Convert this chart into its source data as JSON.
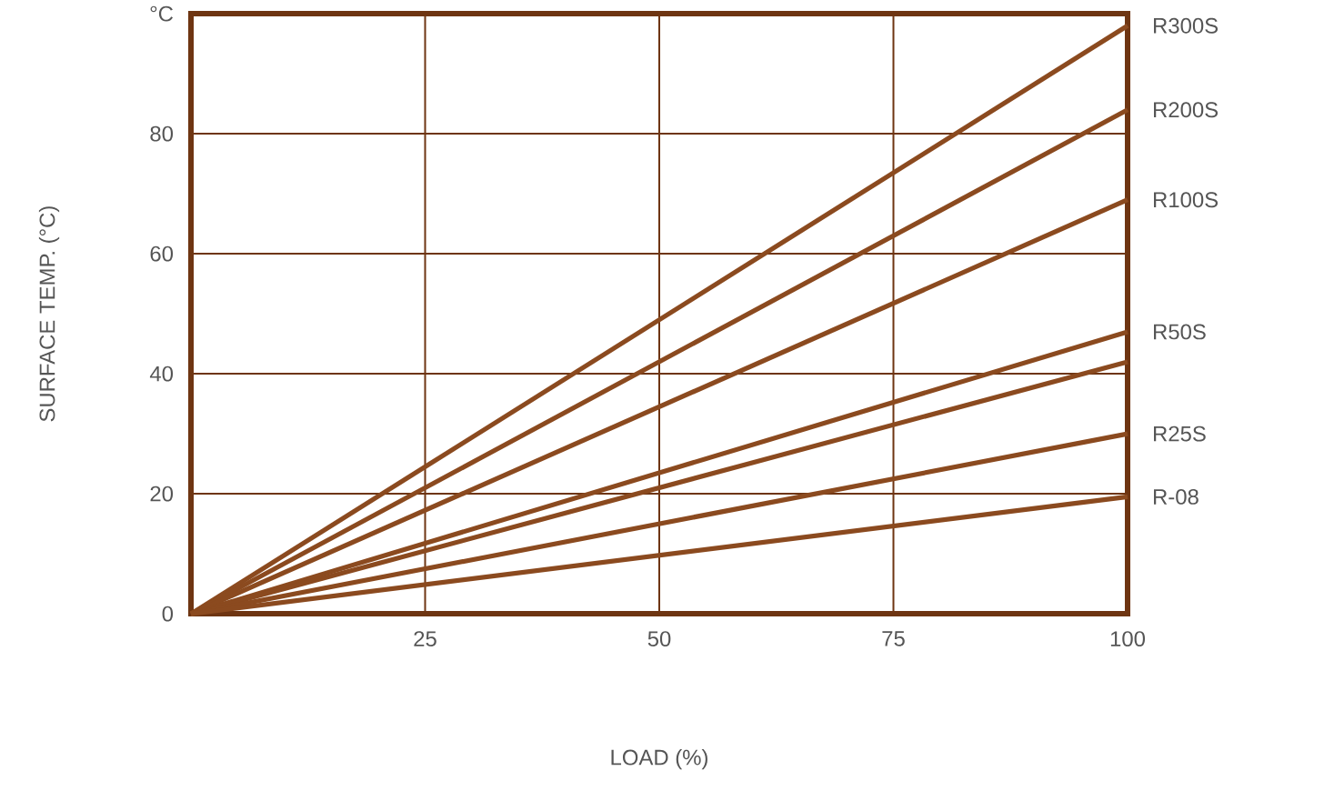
{
  "chart_data": {
    "type": "line",
    "xlabel": "LOAD (%)",
    "ylabel": "SURFACE TEMP. (°C)",
    "x": [
      0,
      100
    ],
    "series": [
      {
        "name": "R300S",
        "color": "#8b4a1f",
        "values": [
          0,
          98
        ]
      },
      {
        "name": "R200S",
        "color": "#8b4a1f",
        "values": [
          0,
          84
        ]
      },
      {
        "name": "R100S",
        "color": "#8b4a1f",
        "values": [
          0,
          69
        ]
      },
      {
        "name": "R50S",
        "color": "#8b4a1f",
        "values": [
          0,
          47
        ]
      },
      {
        "color": "#8b4a1f",
        "values": [
          0,
          42
        ]
      },
      {
        "name": "R25S",
        "color": "#8b4a1f",
        "values": [
          0,
          30
        ]
      },
      {
        "name": "R-08",
        "color": "#8b4a1f",
        "values": [
          0,
          19.5
        ]
      }
    ],
    "xlim": [
      0,
      100
    ],
    "ylim": [
      0,
      100
    ],
    "xticks": [
      25,
      50,
      75,
      100
    ],
    "yticks": [
      0,
      20,
      40,
      60,
      80,
      {
        "value": 100,
        "label": "°C"
      }
    ],
    "grid": true,
    "legend": false,
    "marker": "none",
    "line_style": "solid"
  }
}
